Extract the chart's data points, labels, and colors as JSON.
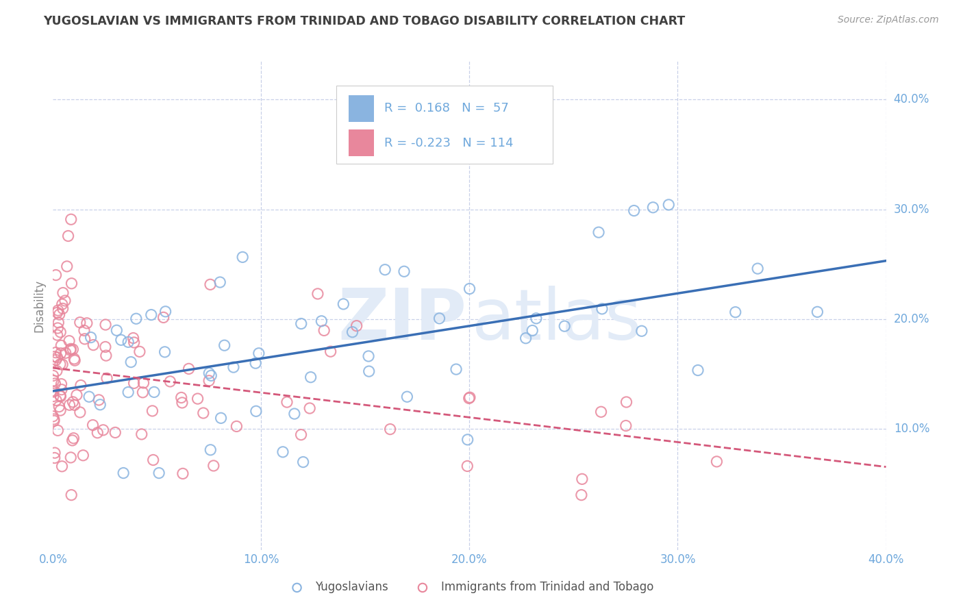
{
  "title": "YUGOSLAVIAN VS IMMIGRANTS FROM TRINIDAD AND TOBAGO DISABILITY CORRELATION CHART",
  "source": "Source: ZipAtlas.com",
  "ylabel": "Disability",
  "xlim": [
    0.0,
    0.4
  ],
  "ylim": [
    -0.01,
    0.435
  ],
  "blue_color": "#8ab4e0",
  "pink_color": "#e8879c",
  "trend_blue": "#3a6fb5",
  "trend_pink": "#d4587a",
  "axis_label_color": "#6fa8dc",
  "grid_color": "#c8d0e8",
  "background_color": "#ffffff",
  "title_color": "#404040",
  "blue_N": 57,
  "pink_N": 114,
  "blue_R": 0.168,
  "pink_R": -0.223,
  "blue_intercept": 0.138,
  "blue_slope": 0.19,
  "pink_intercept": 0.155,
  "pink_slope": -0.215
}
